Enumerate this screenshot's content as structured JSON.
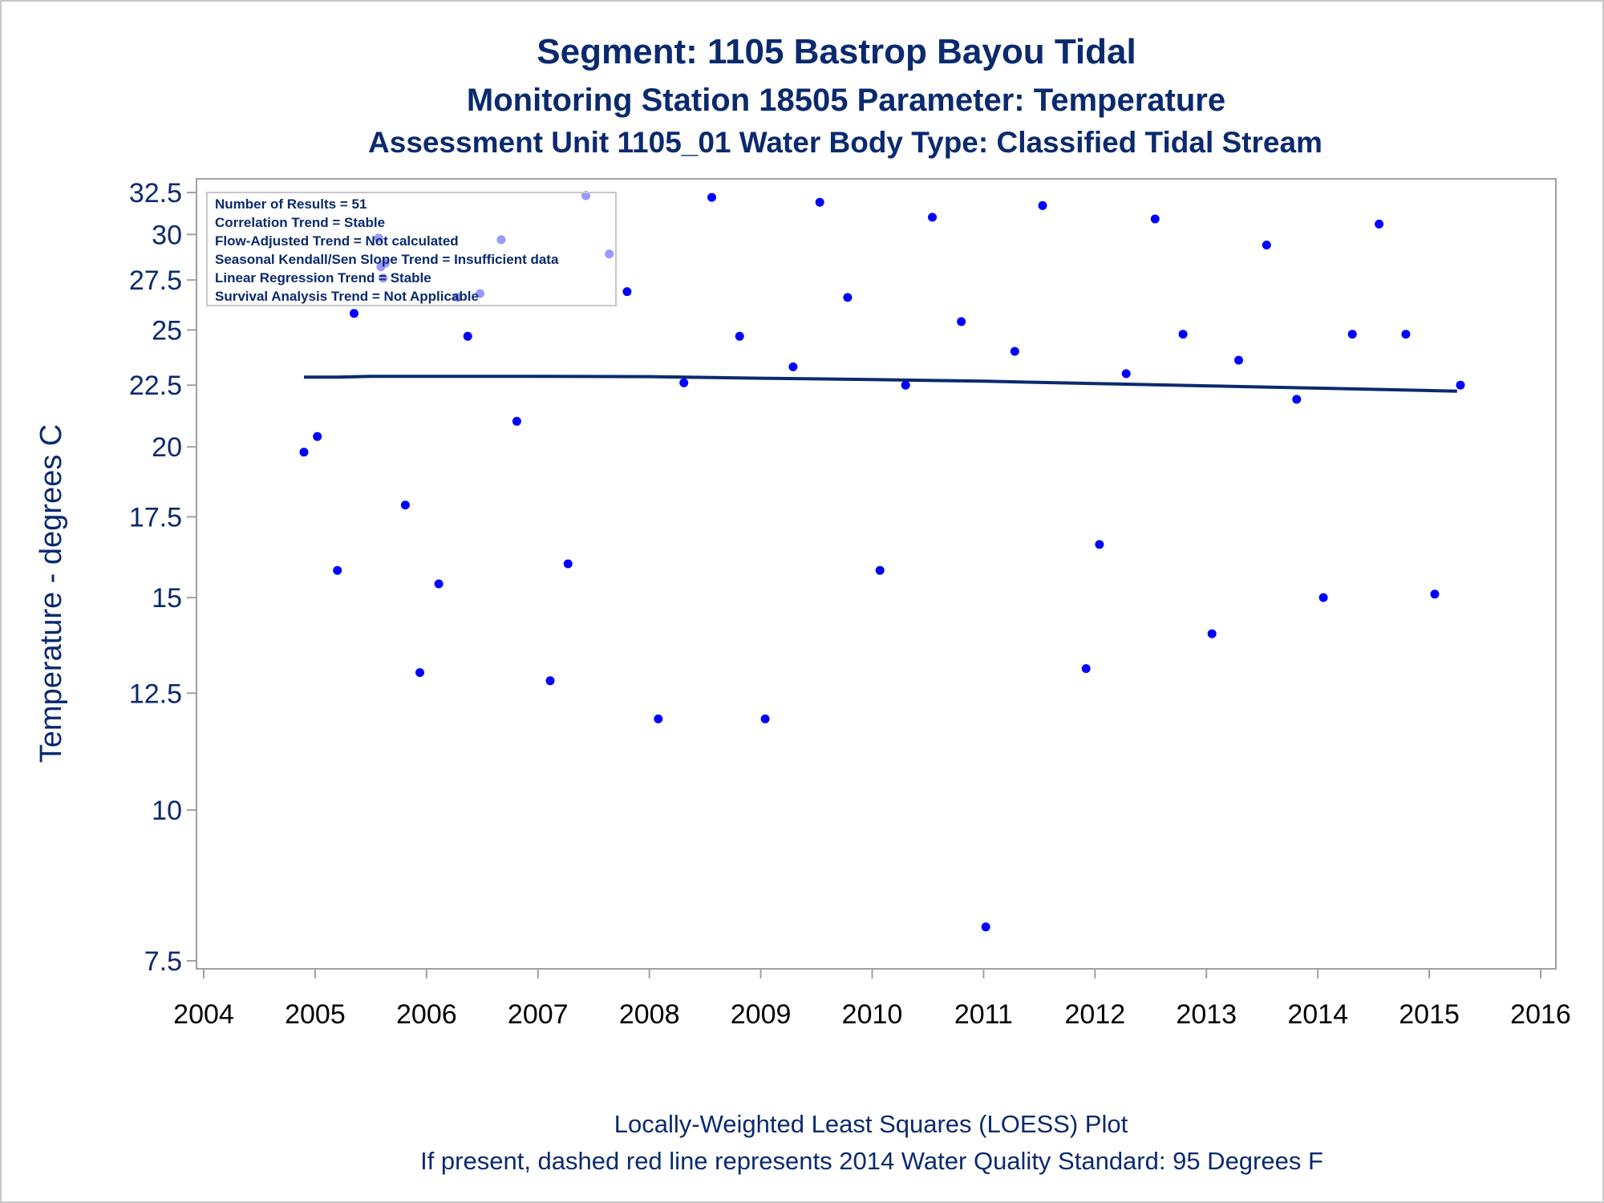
{
  "titles": {
    "line1": "Segment: 1105  Bastrop Bayou Tidal",
    "line2": "Monitoring Station 18505 Parameter: Temperature",
    "line3": "Assessment Unit 1105_01   Water Body Type: Classified Tidal Stream"
  },
  "footnotes": {
    "line1": "Locally-Weighted Least Squares (LOESS) Plot",
    "line2": "If present, dashed red line represents 2014 Water Quality Standard: 95   Degrees F"
  },
  "stats_box": [
    "Number of Results = 51",
    "Correlation Trend = Stable",
    "Flow-Adjusted Trend = Not calculated",
    "Seasonal Kendall/Sen Slope Trend = Insufficient data",
    "Linear Regression Trend = Stable",
    "Survival Analysis Trend = Not Applicable"
  ],
  "colors": {
    "text": "#0b2a6e",
    "points": "#0000ff",
    "loess": "#0b2a6e",
    "frame": "#a0a0a0"
  },
  "chart_data": {
    "type": "scatter",
    "ylabel": "Temperature - degrees C",
    "xlabel": "",
    "y_scale": "log",
    "xlim": [
      2004,
      2016
    ],
    "ylim": [
      7.3,
      33.3
    ],
    "x_ticks": [
      "2004",
      "2005",
      "2006",
      "2007",
      "2008",
      "2009",
      "2010",
      "2011",
      "2012",
      "2013",
      "2014",
      "2015",
      "2016"
    ],
    "y_ticks": [
      "7.5",
      "10",
      "12.5",
      "15",
      "17.5",
      "20",
      "22.5",
      "25",
      "27.5",
      "30",
      "32.5"
    ],
    "series": [
      {
        "type": "scatter",
        "points": [
          [
            2004.9,
            19.8
          ],
          [
            2005.02,
            20.4
          ],
          [
            2005.2,
            15.8
          ],
          [
            2005.35,
            25.8
          ],
          [
            2005.57,
            29.8
          ],
          [
            2005.59,
            28.2
          ],
          [
            2005.61,
            27.6
          ],
          [
            2005.63,
            28.4
          ],
          [
            2005.81,
            17.9
          ],
          [
            2005.94,
            13.0
          ],
          [
            2006.11,
            15.4
          ],
          [
            2006.28,
            26.6
          ],
          [
            2006.37,
            24.7
          ],
          [
            2006.48,
            26.8
          ],
          [
            2006.67,
            29.7
          ],
          [
            2006.81,
            21.0
          ],
          [
            2007.11,
            12.8
          ],
          [
            2007.27,
            16.0
          ],
          [
            2007.43,
            32.3
          ],
          [
            2007.64,
            28.9
          ],
          [
            2007.8,
            26.9
          ],
          [
            2008.08,
            11.9
          ],
          [
            2008.31,
            22.6
          ],
          [
            2008.56,
            32.2
          ],
          [
            2008.81,
            24.7
          ],
          [
            2009.04,
            11.9
          ],
          [
            2009.29,
            23.3
          ],
          [
            2009.53,
            31.9
          ],
          [
            2009.78,
            26.6
          ],
          [
            2010.07,
            15.8
          ],
          [
            2010.3,
            22.5
          ],
          [
            2010.54,
            31.0
          ],
          [
            2010.8,
            25.4
          ],
          [
            2011.02,
            8.0
          ],
          [
            2011.28,
            24.0
          ],
          [
            2011.53,
            31.7
          ],
          [
            2011.92,
            13.1
          ],
          [
            2012.04,
            16.6
          ],
          [
            2012.28,
            23.0
          ],
          [
            2012.54,
            30.9
          ],
          [
            2012.79,
            24.8
          ],
          [
            2013.05,
            14.0
          ],
          [
            2013.29,
            23.6
          ],
          [
            2013.54,
            29.4
          ],
          [
            2013.81,
            21.9
          ],
          [
            2014.05,
            15.0
          ],
          [
            2014.31,
            24.8
          ],
          [
            2014.55,
            30.6
          ],
          [
            2014.79,
            24.8
          ],
          [
            2015.05,
            15.1
          ],
          [
            2015.28,
            22.5
          ]
        ]
      },
      {
        "type": "line",
        "points": [
          [
            2004.9,
            22.85
          ],
          [
            2005.2,
            22.85
          ],
          [
            2005.5,
            22.88
          ],
          [
            2006.0,
            22.88
          ],
          [
            2007.0,
            22.88
          ],
          [
            2008.0,
            22.87
          ],
          [
            2009.0,
            22.8
          ],
          [
            2010.0,
            22.74
          ],
          [
            2011.0,
            22.67
          ],
          [
            2012.0,
            22.57
          ],
          [
            2013.0,
            22.47
          ],
          [
            2014.0,
            22.37
          ],
          [
            2015.0,
            22.27
          ],
          [
            2015.25,
            22.24
          ]
        ]
      }
    ]
  }
}
